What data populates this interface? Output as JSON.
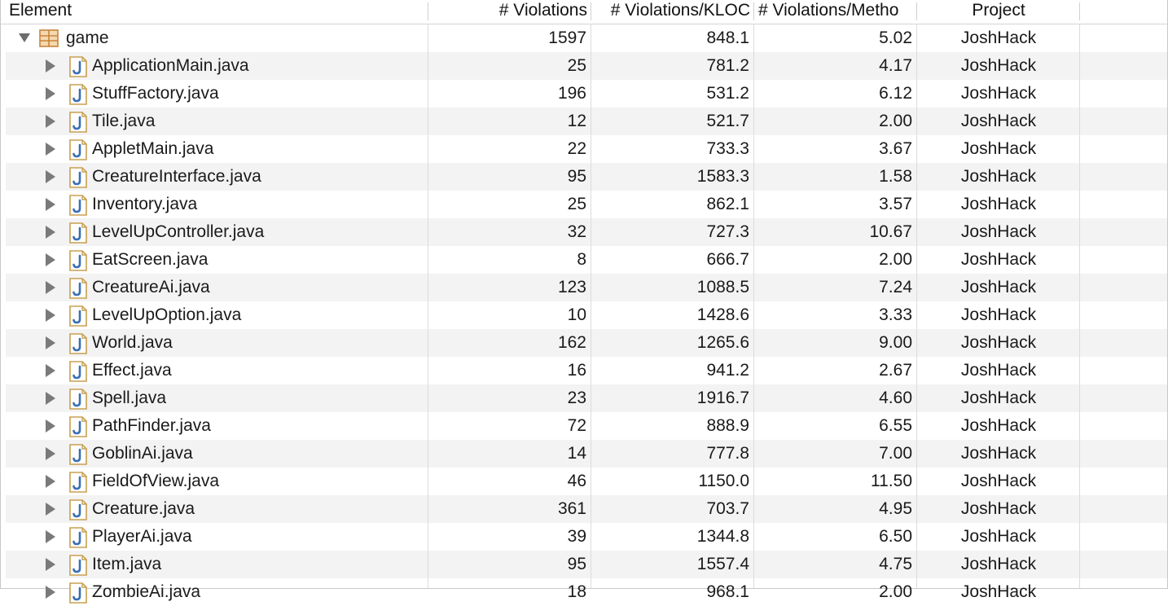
{
  "columns": {
    "element": "Element",
    "violations": "# Violations",
    "kloc": "# Violations/KLOC",
    "method": "# Violations/Metho",
    "project": "Project"
  },
  "root": {
    "name": "game",
    "violations": "1597",
    "kloc": "848.1",
    "method": "5.02",
    "project": "JoshHack",
    "expanded": true,
    "icon": "package-icon"
  },
  "rows": [
    {
      "name": "ApplicationMain.java",
      "violations": "25",
      "kloc": "781.2",
      "method": "4.17",
      "project": "JoshHack"
    },
    {
      "name": "StuffFactory.java",
      "violations": "196",
      "kloc": "531.2",
      "method": "6.12",
      "project": "JoshHack"
    },
    {
      "name": "Tile.java",
      "violations": "12",
      "kloc": "521.7",
      "method": "2.00",
      "project": "JoshHack"
    },
    {
      "name": "AppletMain.java",
      "violations": "22",
      "kloc": "733.3",
      "method": "3.67",
      "project": "JoshHack"
    },
    {
      "name": "CreatureInterface.java",
      "violations": "95",
      "kloc": "1583.3",
      "method": "1.58",
      "project": "JoshHack"
    },
    {
      "name": "Inventory.java",
      "violations": "25",
      "kloc": "862.1",
      "method": "3.57",
      "project": "JoshHack"
    },
    {
      "name": "LevelUpController.java",
      "violations": "32",
      "kloc": "727.3",
      "method": "10.67",
      "project": "JoshHack"
    },
    {
      "name": "EatScreen.java",
      "violations": "8",
      "kloc": "666.7",
      "method": "2.00",
      "project": "JoshHack"
    },
    {
      "name": "CreatureAi.java",
      "violations": "123",
      "kloc": "1088.5",
      "method": "7.24",
      "project": "JoshHack"
    },
    {
      "name": "LevelUpOption.java",
      "violations": "10",
      "kloc": "1428.6",
      "method": "3.33",
      "project": "JoshHack"
    },
    {
      "name": "World.java",
      "violations": "162",
      "kloc": "1265.6",
      "method": "9.00",
      "project": "JoshHack"
    },
    {
      "name": "Effect.java",
      "violations": "16",
      "kloc": "941.2",
      "method": "2.67",
      "project": "JoshHack"
    },
    {
      "name": "Spell.java",
      "violations": "23",
      "kloc": "1916.7",
      "method": "4.60",
      "project": "JoshHack"
    },
    {
      "name": "PathFinder.java",
      "violations": "72",
      "kloc": "888.9",
      "method": "6.55",
      "project": "JoshHack"
    },
    {
      "name": "GoblinAi.java",
      "violations": "14",
      "kloc": "777.8",
      "method": "7.00",
      "project": "JoshHack"
    },
    {
      "name": "FieldOfView.java",
      "violations": "46",
      "kloc": "1150.0",
      "method": "11.50",
      "project": "JoshHack"
    },
    {
      "name": "Creature.java",
      "violations": "361",
      "kloc": "703.7",
      "method": "4.95",
      "project": "JoshHack"
    },
    {
      "name": "PlayerAi.java",
      "violations": "39",
      "kloc": "1344.8",
      "method": "6.50",
      "project": "JoshHack"
    },
    {
      "name": "Item.java",
      "violations": "95",
      "kloc": "1557.4",
      "method": "4.75",
      "project": "JoshHack"
    },
    {
      "name": "ZombieAi.java",
      "violations": "18",
      "kloc": "968.1",
      "method": "2.00",
      "project": "JoshHack"
    }
  ],
  "colors": {
    "alt_row": "#f3f3f3",
    "java_icon_border": "#c8a050",
    "java_icon_letter": "#3b6fb6",
    "package_icon": "#c9843a"
  }
}
